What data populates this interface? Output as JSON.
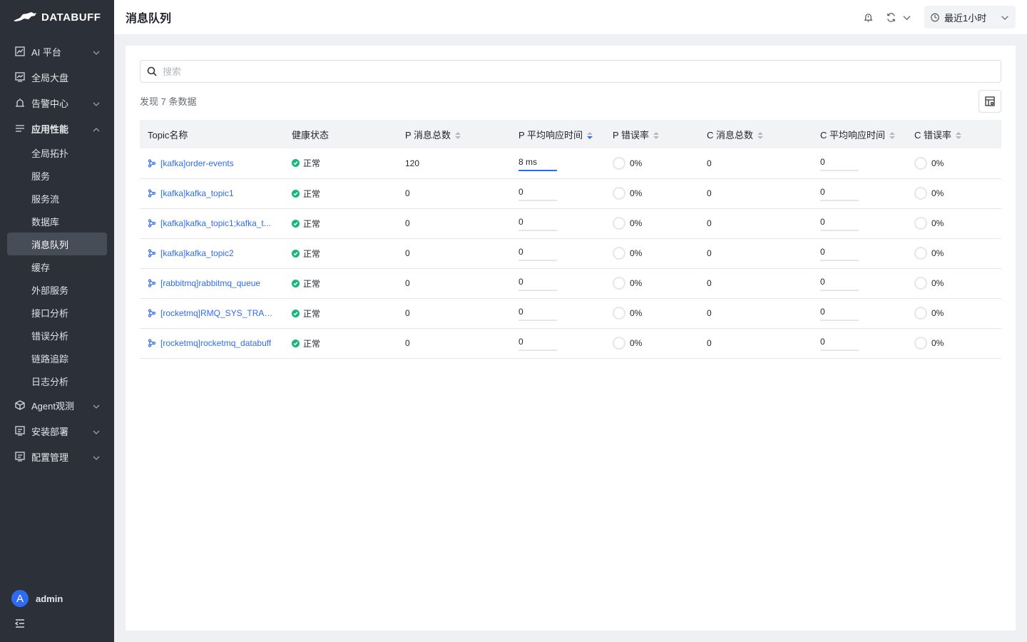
{
  "app": {
    "brand": "DATABUFF"
  },
  "sidebar": {
    "menu": [
      {
        "label": "AI 平台",
        "icon": "chart-icon",
        "expandable": true,
        "expanded": false
      },
      {
        "label": "全局大盘",
        "icon": "dashboard-icon",
        "expandable": false
      },
      {
        "label": "告警中心",
        "icon": "alarm-icon",
        "expandable": true,
        "expanded": false
      },
      {
        "label": "应用性能",
        "icon": "list-icon",
        "expandable": true,
        "expanded": true
      }
    ],
    "apm_children": [
      "全局拓扑",
      "服务",
      "服务流",
      "数据库",
      "消息队列",
      "缓存",
      "外部服务",
      "接口分析",
      "错误分析",
      "链路追踪",
      "日志分析"
    ],
    "active_child": "消息队列",
    "menu_after": [
      {
        "label": "Agent观测",
        "icon": "cube-icon"
      },
      {
        "label": "安装部署",
        "icon": "install-icon"
      },
      {
        "label": "配置管理",
        "icon": "config-icon"
      }
    ],
    "user": {
      "initial": "A",
      "name": "admin"
    }
  },
  "header": {
    "title": "消息队列",
    "time_range": "最近1小时"
  },
  "search": {
    "placeholder": "搜索"
  },
  "summary": {
    "count_text": "发现 7 条数据"
  },
  "table": {
    "columns": [
      "Topic名称",
      "健康状态",
      "P 消息总数",
      "P 平均响应时间",
      "P 错误率",
      "C 消息总数",
      "C 平均响应时间",
      "C 错误率"
    ],
    "sorted_column": "P 平均响应时间",
    "sort_direction": "desc",
    "rows": [
      {
        "topic": "[kafka]order-events",
        "status": "正常",
        "p_total": "120",
        "p_avg": "8 ms",
        "p_avg_fill": 1.0,
        "p_err": "0%",
        "c_total": "0",
        "c_avg": "0",
        "c_err": "0%"
      },
      {
        "topic": "[kafka]kafka_topic1",
        "status": "正常",
        "p_total": "0",
        "p_avg": "0",
        "p_avg_fill": 0,
        "p_err": "0%",
        "c_total": "0",
        "c_avg": "0",
        "c_err": "0%"
      },
      {
        "topic": "[kafka]kafka_topic1;kafka_t...",
        "status": "正常",
        "p_total": "0",
        "p_avg": "0",
        "p_avg_fill": 0,
        "p_err": "0%",
        "c_total": "0",
        "c_avg": "0",
        "c_err": "0%"
      },
      {
        "topic": "[kafka]kafka_topic2",
        "status": "正常",
        "p_total": "0",
        "p_avg": "0",
        "p_avg_fill": 0,
        "p_err": "0%",
        "c_total": "0",
        "c_avg": "0",
        "c_err": "0%"
      },
      {
        "topic": "[rabbitmq]rabbitmq_queue",
        "status": "正常",
        "p_total": "0",
        "p_avg": "0",
        "p_avg_fill": 0,
        "p_err": "0%",
        "c_total": "0",
        "c_avg": "0",
        "c_err": "0%"
      },
      {
        "topic": "[rocketmq]RMQ_SYS_TRAC...",
        "status": "正常",
        "p_total": "0",
        "p_avg": "0",
        "p_avg_fill": 0,
        "p_err": "0%",
        "c_total": "0",
        "c_avg": "0",
        "c_err": "0%"
      },
      {
        "topic": "[rocketmq]rocketmq_databuff",
        "status": "正常",
        "p_total": "0",
        "p_avg": "0",
        "p_avg_fill": 0,
        "p_err": "0%",
        "c_total": "0",
        "c_avg": "0",
        "c_err": "0%"
      }
    ]
  },
  "colors": {
    "accent": "#2f6bf0",
    "healthy": "#14b87a",
    "sidebar_bg": "#2b3039"
  }
}
